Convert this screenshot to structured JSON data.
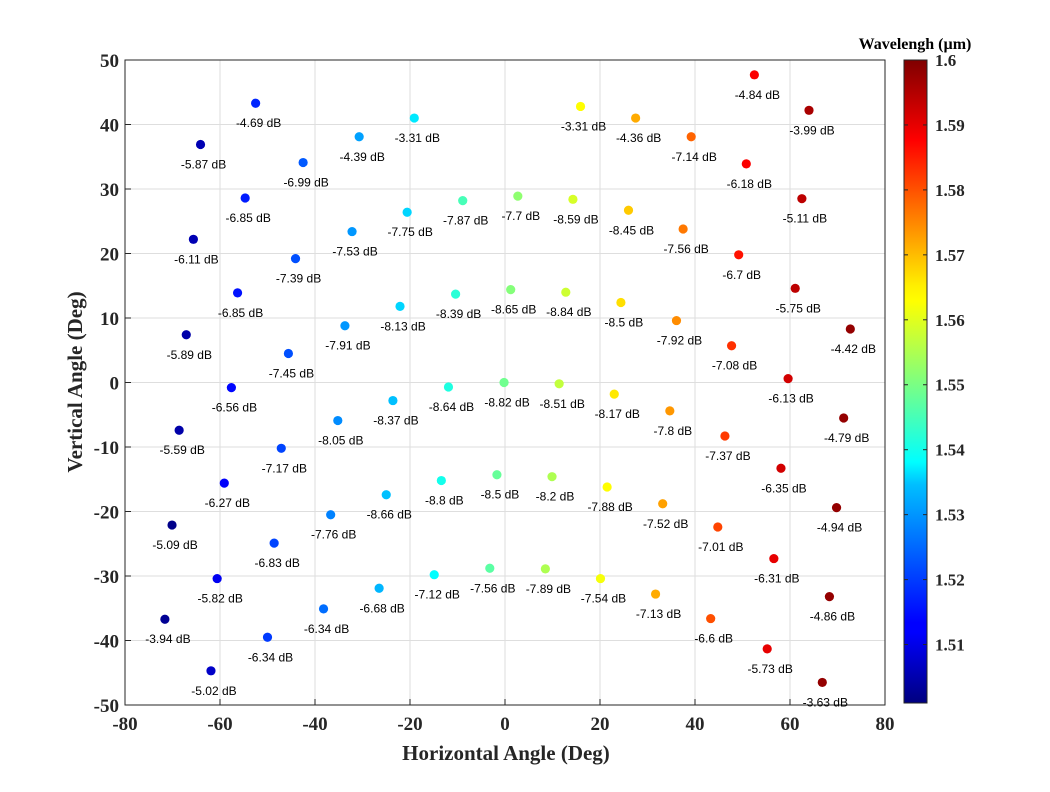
{
  "chart_data": {
    "type": "scatter",
    "xlabel": "Horizontal Angle (Deg)",
    "ylabel": "Vertical Angle (Deg)",
    "xlim": [
      -80,
      80
    ],
    "ylim": [
      -50,
      50
    ],
    "xticks": [
      -80,
      -60,
      -40,
      -20,
      0,
      20,
      40,
      60,
      80
    ],
    "yticks": [
      -50,
      -40,
      -30,
      -20,
      -10,
      0,
      10,
      20,
      30,
      40,
      50
    ],
    "grid": true,
    "colorbar": {
      "title": "Wavelengh (µm)",
      "min": 1.501,
      "max": 1.6,
      "ticks": [
        1.51,
        1.52,
        1.53,
        1.54,
        1.55,
        1.56,
        1.57,
        1.58,
        1.59,
        1.6
      ],
      "colormap": "jet"
    },
    "points": [
      {
        "x": -52.5,
        "y": 43.3,
        "wavelength": 1.517,
        "label": "-4.69 dB"
      },
      {
        "x": -64.1,
        "y": 36.9,
        "wavelength": 1.506,
        "label": "-5.87 dB"
      },
      {
        "x": -30.7,
        "y": 38.1,
        "wavelength": 1.529,
        "label": "-4.39 dB"
      },
      {
        "x": -19.1,
        "y": 41.0,
        "wavelength": 1.536,
        "label": "-3.31 dB"
      },
      {
        "x": 15.9,
        "y": 42.8,
        "wavelength": 1.563,
        "label": "-3.31 dB"
      },
      {
        "x": 27.5,
        "y": 41.0,
        "wavelength": 1.571,
        "label": "-4.36 dB"
      },
      {
        "x": 52.5,
        "y": 47.7,
        "wavelength": 1.588,
        "label": "-4.84 dB"
      },
      {
        "x": 64.0,
        "y": 42.2,
        "wavelength": 1.596,
        "label": "-3.99 dB"
      },
      {
        "x": -42.5,
        "y": 34.1,
        "wavelength": 1.522,
        "label": "-6.99 dB"
      },
      {
        "x": 39.2,
        "y": 38.1,
        "wavelength": 1.578,
        "label": "-7.14 dB"
      },
      {
        "x": 50.8,
        "y": 33.9,
        "wavelength": 1.588,
        "label": "-6.18 dB"
      },
      {
        "x": -54.7,
        "y": 28.6,
        "wavelength": 1.516,
        "label": "-6.85 dB"
      },
      {
        "x": -20.6,
        "y": 26.4,
        "wavelength": 1.534,
        "label": "-7.75 dB"
      },
      {
        "x": -8.9,
        "y": 28.2,
        "wavelength": 1.545,
        "label": "-7.87 dB"
      },
      {
        "x": 2.7,
        "y": 28.9,
        "wavelength": 1.552,
        "label": "-7.7 dB"
      },
      {
        "x": 14.3,
        "y": 28.4,
        "wavelength": 1.559,
        "label": "-8.59 dB"
      },
      {
        "x": 26.0,
        "y": 26.7,
        "wavelength": 1.568,
        "label": "-8.45 dB"
      },
      {
        "x": 62.5,
        "y": 28.5,
        "wavelength": 1.594,
        "label": "-5.11 dB"
      },
      {
        "x": -65.6,
        "y": 22.2,
        "wavelength": 1.506,
        "label": "-6.11 dB"
      },
      {
        "x": -32.2,
        "y": 23.4,
        "wavelength": 1.528,
        "label": "-7.53 dB"
      },
      {
        "x": 37.5,
        "y": 23.8,
        "wavelength": 1.576,
        "label": "-7.56 dB"
      },
      {
        "x": 49.2,
        "y": 19.8,
        "wavelength": 1.586,
        "label": "-6.7 dB"
      },
      {
        "x": -44.1,
        "y": 19.2,
        "wavelength": 1.521,
        "label": "-7.39 dB"
      },
      {
        "x": 61.1,
        "y": 14.6,
        "wavelength": 1.594,
        "label": "-5.75 dB"
      },
      {
        "x": -56.3,
        "y": 13.9,
        "wavelength": 1.515,
        "label": "-6.85 dB"
      },
      {
        "x": -22.1,
        "y": 11.8,
        "wavelength": 1.534,
        "label": "-8.13 dB"
      },
      {
        "x": -10.4,
        "y": 13.7,
        "wavelength": 1.542,
        "label": "-8.39 dB"
      },
      {
        "x": 1.2,
        "y": 14.4,
        "wavelength": 1.551,
        "label": "-8.65 dB"
      },
      {
        "x": 12.8,
        "y": 14.0,
        "wavelength": 1.558,
        "label": "-8.84 dB"
      },
      {
        "x": 24.4,
        "y": 12.4,
        "wavelength": 1.566,
        "label": "-8.5 dB"
      },
      {
        "x": 36.1,
        "y": 9.6,
        "wavelength": 1.574,
        "label": "-7.92 dB"
      },
      {
        "x": -33.7,
        "y": 8.8,
        "wavelength": 1.528,
        "label": "-7.91 dB"
      },
      {
        "x": 72.7,
        "y": 8.3,
        "wavelength": 1.598,
        "label": "-4.42 dB"
      },
      {
        "x": -67.1,
        "y": 7.4,
        "wavelength": 1.505,
        "label": "-5.89 dB"
      },
      {
        "x": 47.7,
        "y": 5.7,
        "wavelength": 1.583,
        "label": "-7.08 dB"
      },
      {
        "x": -45.6,
        "y": 4.5,
        "wavelength": 1.521,
        "label": "-7.45 dB"
      },
      {
        "x": 59.6,
        "y": 0.6,
        "wavelength": 1.592,
        "label": "-6.13 dB"
      },
      {
        "x": -0.2,
        "y": 0.0,
        "wavelength": 1.549,
        "label": "-8.82 dB"
      },
      {
        "x": -11.9,
        "y": -0.7,
        "wavelength": 1.541,
        "label": "-8.64 dB"
      },
      {
        "x": 11.4,
        "y": -0.2,
        "wavelength": 1.557,
        "label": "-8.51 dB"
      },
      {
        "x": -57.6,
        "y": -0.8,
        "wavelength": 1.514,
        "label": "-6.56 dB"
      },
      {
        "x": 23.0,
        "y": -1.8,
        "wavelength": 1.565,
        "label": "-8.17 dB"
      },
      {
        "x": -23.6,
        "y": -2.8,
        "wavelength": 1.532,
        "label": "-8.37 dB"
      },
      {
        "x": 34.7,
        "y": -4.4,
        "wavelength": 1.573,
        "label": "-7.8 dB"
      },
      {
        "x": 71.3,
        "y": -5.5,
        "wavelength": 1.598,
        "label": "-4.79 dB"
      },
      {
        "x": -35.2,
        "y": -5.9,
        "wavelength": 1.527,
        "label": "-8.05 dB"
      },
      {
        "x": -68.6,
        "y": -7.4,
        "wavelength": 1.505,
        "label": "-5.59 dB"
      },
      {
        "x": 46.3,
        "y": -8.3,
        "wavelength": 1.582,
        "label": "-7.37 dB"
      },
      {
        "x": -47.1,
        "y": -10.2,
        "wavelength": 1.52,
        "label": "-7.17 dB"
      },
      {
        "x": 58.1,
        "y": -13.3,
        "wavelength": 1.592,
        "label": "-6.35 dB"
      },
      {
        "x": -1.7,
        "y": -14.3,
        "wavelength": 1.548,
        "label": "-8.5 dB"
      },
      {
        "x": 9.9,
        "y": -14.6,
        "wavelength": 1.555,
        "label": "-8.2 dB"
      },
      {
        "x": -13.4,
        "y": -15.2,
        "wavelength": 1.54,
        "label": "-8.8 dB"
      },
      {
        "x": -59.1,
        "y": -15.6,
        "wavelength": 1.513,
        "label": "-6.27 dB"
      },
      {
        "x": 21.5,
        "y": -16.2,
        "wavelength": 1.563,
        "label": "-7.88 dB"
      },
      {
        "x": -25.0,
        "y": -17.4,
        "wavelength": 1.532,
        "label": "-8.66 dB"
      },
      {
        "x": 33.2,
        "y": -18.8,
        "wavelength": 1.572,
        "label": "-7.52 dB"
      },
      {
        "x": 69.8,
        "y": -19.4,
        "wavelength": 1.598,
        "label": "-4.94 dB"
      },
      {
        "x": -36.7,
        "y": -20.5,
        "wavelength": 1.526,
        "label": "-7.76 dB"
      },
      {
        "x": -70.1,
        "y": -22.1,
        "wavelength": 1.502,
        "label": "-5.09 dB"
      },
      {
        "x": 44.8,
        "y": -22.4,
        "wavelength": 1.581,
        "label": "-7.01 dB"
      },
      {
        "x": -48.6,
        "y": -24.9,
        "wavelength": 1.52,
        "label": "-6.83 dB"
      },
      {
        "x": 56.6,
        "y": -27.3,
        "wavelength": 1.59,
        "label": "-6.31 dB"
      },
      {
        "x": -3.2,
        "y": -28.8,
        "wavelength": 1.547,
        "label": "-7.56 dB"
      },
      {
        "x": 8.5,
        "y": -28.9,
        "wavelength": 1.555,
        "label": "-7.89 dB"
      },
      {
        "x": -14.9,
        "y": -29.8,
        "wavelength": 1.538,
        "label": "-7.12 dB"
      },
      {
        "x": -60.6,
        "y": -30.4,
        "wavelength": 1.512,
        "label": "-5.82 dB"
      },
      {
        "x": 20.1,
        "y": -30.4,
        "wavelength": 1.562,
        "label": "-7.54 dB"
      },
      {
        "x": -26.5,
        "y": -31.9,
        "wavelength": 1.531,
        "label": "-6.68 dB"
      },
      {
        "x": 31.7,
        "y": -32.8,
        "wavelength": 1.571,
        "label": "-7.13 dB"
      },
      {
        "x": 68.3,
        "y": -33.2,
        "wavelength": 1.598,
        "label": "-4.86 dB"
      },
      {
        "x": -38.2,
        "y": -35.1,
        "wavelength": 1.524,
        "label": "-6.34 dB"
      },
      {
        "x": 43.3,
        "y": -36.6,
        "wavelength": 1.58,
        "label": "-6.6 dB"
      },
      {
        "x": -71.6,
        "y": -36.7,
        "wavelength": 1.503,
        "label": "-3.94 dB"
      },
      {
        "x": -50.0,
        "y": -39.5,
        "wavelength": 1.519,
        "label": "-6.34 dB"
      },
      {
        "x": 55.2,
        "y": -41.3,
        "wavelength": 1.59,
        "label": "-5.73 dB"
      },
      {
        "x": -61.9,
        "y": -44.7,
        "wavelength": 1.508,
        "label": "-5.02 dB"
      },
      {
        "x": 66.8,
        "y": -46.5,
        "wavelength": 1.598,
        "label": "-3.63 dB"
      }
    ]
  }
}
